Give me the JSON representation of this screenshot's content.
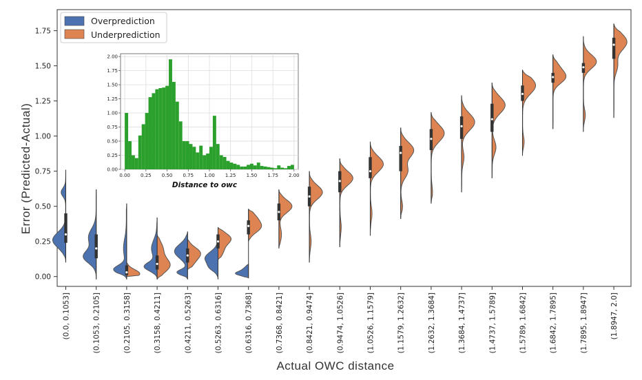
{
  "chart_data": [
    {
      "type": "violin",
      "title": "",
      "xlabel": "Actual OWC distance",
      "ylabel": "Error (Predicted-Actual)",
      "ylim": [
        -0.07,
        1.9
      ],
      "yticks": [
        0.0,
        0.25,
        0.5,
        0.75,
        1.0,
        1.25,
        1.5,
        1.75
      ],
      "ytick_labels": [
        "0.00",
        "0.25",
        "0.50",
        "0.75",
        "1.00",
        "1.25",
        "1.50",
        "1.75"
      ],
      "legend_position": "top-left",
      "categories": [
        "(0.0, 0.1053]",
        "(0.1053, 0.2105]",
        "(0.2105, 0.3158]",
        "(0.3158, 0.4211]",
        "(0.4211, 0.5263]",
        "(0.5263, 0.6316]",
        "(0.6316, 0.7368]",
        "(0.7368, 0.8421]",
        "(0.8421, 0.9474]",
        "(0.9474, 1.0526]",
        "(1.0526, 1.1579]",
        "(1.1579, 1.2632]",
        "(1.2632, 1.3684]",
        "(1.3684, 1.4737]",
        "(1.4737, 1.5789]",
        "(1.5789, 1.6842]",
        "(1.6842, 1.7895]",
        "(1.7895, 1.8947]",
        "(1.8947, 2.0]"
      ],
      "series": [
        {
          "name": "Overprediction",
          "color": "#4C72B0",
          "violins": [
            {
              "min": 0.1,
              "max": 0.76,
              "modes": [
                [
                  0.26,
                  0.055,
                  1.0
                ],
                [
                  0.6,
                  0.03,
                  0.35
                ]
              ],
              "median": 0.3,
              "q1": 0.24,
              "q3": 0.45
            },
            {
              "min": -0.02,
              "max": 0.62,
              "modes": [
                [
                  0.14,
                  0.045,
                  0.9
                ],
                [
                  0.28,
                  0.06,
                  0.55
                ]
              ],
              "median": 0.2,
              "q1": 0.13,
              "q3": 0.3
            },
            {
              "min": -0.02,
              "max": 0.52,
              "modes": [
                [
                  0.05,
                  0.03,
                  0.35
                ],
                [
                  0.2,
                  0.07,
                  0.08
                ]
              ],
              "median": 0.05,
              "q1": 0.02,
              "q3": 0.12
            },
            {
              "min": -0.02,
              "max": 0.42,
              "modes": [
                [
                  0.07,
                  0.03,
                  0.5
                ],
                [
                  0.2,
                  0.06,
                  0.22
                ]
              ],
              "median": 0.08,
              "q1": 0.04,
              "q3": 0.15
            },
            {
              "min": -0.02,
              "max": 0.32,
              "modes": [
                [
                  0.03,
                  0.02,
                  0.4
                ],
                [
                  0.18,
                  0.05,
                  0.5
                ]
              ],
              "median": 0.15,
              "q1": 0.05,
              "q3": 0.2
            },
            {
              "min": -0.02,
              "max": 0.32,
              "modes": [
                [
                  0.06,
                  0.025,
                  0.3
                ],
                [
                  0.13,
                  0.045,
                  0.8
                ]
              ],
              "median": 0.12,
              "q1": 0.06,
              "q3": 0.2
            },
            {
              "min": -0.01,
              "max": 0.09,
              "modes": [
                [
                  0.02,
                  0.015,
                  0.7
                ],
                [
                  0.05,
                  0.02,
                  0.3
                ]
              ],
              "median": 0.02,
              "q1": 0.01,
              "q3": 0.05
            }
          ]
        },
        {
          "name": "Underprediction",
          "color": "#DD8452",
          "violins": [
            {
              "min": 0.6,
              "max": 0.6,
              "modes": [],
              "median": 0.6,
              "q1": 0.6,
              "q3": 0.6
            },
            {
              "min": 0.3,
              "max": 0.3,
              "modes": [],
              "median": 0.3,
              "q1": 0.3,
              "q3": 0.3
            },
            {
              "min": 0.0,
              "max": 0.1,
              "modes": [
                [
                  0.02,
                  0.03,
                  0.65
                ]
              ],
              "median": 0.03,
              "q1": 0.01,
              "q3": 0.08
            },
            {
              "min": -0.02,
              "max": 0.3,
              "modes": [
                [
                  0.08,
                  0.05,
                  0.7
                ],
                [
                  0.2,
                  0.05,
                  0.3
                ]
              ],
              "median": 0.09,
              "q1": 0.05,
              "q3": 0.15
            },
            {
              "min": 0.05,
              "max": 0.27,
              "modes": [
                [
                  0.17,
                  0.04,
                  0.7
                ],
                [
                  0.1,
                  0.04,
                  0.3
                ]
              ],
              "median": 0.15,
              "q1": 0.1,
              "q3": 0.2
            },
            {
              "min": 0.12,
              "max": 0.35,
              "modes": [
                [
                  0.27,
                  0.04,
                  0.8
                ],
                [
                  0.18,
                  0.04,
                  0.3
                ]
              ],
              "median": 0.25,
              "q1": 0.2,
              "q3": 0.3
            },
            {
              "min": 0.25,
              "max": 0.48,
              "modes": [
                [
                  0.35,
                  0.04,
                  0.7
                ],
                [
                  0.42,
                  0.04,
                  0.4
                ]
              ],
              "median": 0.36,
              "q1": 0.3,
              "q3": 0.4
            },
            {
              "min": 0.2,
              "max": 0.62,
              "modes": [
                [
                  0.5,
                  0.045,
                  0.8
                ],
                [
                  0.3,
                  0.05,
                  0.15
                ]
              ],
              "median": 0.46,
              "q1": 0.4,
              "q3": 0.52
            },
            {
              "min": 0.1,
              "max": 0.75,
              "modes": [
                [
                  0.6,
                  0.05,
                  0.8
                ],
                [
                  0.25,
                  0.05,
                  0.1
                ]
              ],
              "median": 0.57,
              "q1": 0.5,
              "q3": 0.64
            },
            {
              "min": 0.21,
              "max": 0.84,
              "modes": [
                [
                  0.7,
                  0.05,
                  0.8
                ],
                [
                  0.35,
                  0.05,
                  0.08
                ]
              ],
              "median": 0.68,
              "q1": 0.6,
              "q3": 0.75
            },
            {
              "min": 0.29,
              "max": 0.96,
              "modes": [
                [
                  0.8,
                  0.055,
                  0.8
                ],
                [
                  0.45,
                  0.05,
                  0.1
                ]
              ],
              "median": 0.75,
              "q1": 0.7,
              "q3": 0.85
            },
            {
              "min": 0.41,
              "max": 1.06,
              "modes": [
                [
                  0.9,
                  0.055,
                  0.75
                ],
                [
                  0.75,
                  0.05,
                  0.4
                ],
                [
                  0.5,
                  0.04,
                  0.1
                ]
              ],
              "median": 0.88,
              "q1": 0.75,
              "q3": 0.93
            },
            {
              "min": 0.52,
              "max": 1.17,
              "modes": [
                [
                  1.02,
                  0.06,
                  0.85
                ],
                [
                  0.6,
                  0.05,
                  0.08
                ]
              ],
              "median": 0.98,
              "q1": 0.9,
              "q3": 1.05
            },
            {
              "min": 0.6,
              "max": 1.29,
              "modes": [
                [
                  1.1,
                  0.06,
                  0.85
                ],
                [
                  0.85,
                  0.05,
                  0.15
                ]
              ],
              "median": 1.07,
              "q1": 0.98,
              "q3": 1.14
            },
            {
              "min": 0.7,
              "max": 1.38,
              "modes": [
                [
                  1.22,
                  0.06,
                  0.85
                ],
                [
                  0.92,
                  0.05,
                  0.25
                ]
              ],
              "median": 1.12,
              "q1": 1.03,
              "q3": 1.23
            },
            {
              "min": 0.86,
              "max": 1.47,
              "modes": [
                [
                  1.36,
                  0.06,
                  0.85
                ],
                [
                  0.96,
                  0.04,
                  0.1
                ]
              ],
              "median": 1.3,
              "q1": 1.25,
              "q3": 1.36
            },
            {
              "min": 1.05,
              "max": 1.58,
              "modes": [
                [
                  1.42,
                  0.045,
                  0.9
                ],
                [
                  1.5,
                  0.04,
                  0.3
                ]
              ],
              "median": 1.42,
              "q1": 1.38,
              "q3": 1.45
            },
            {
              "min": 1.03,
              "max": 1.71,
              "modes": [
                [
                  1.53,
                  0.05,
                  0.85
                ],
                [
                  1.15,
                  0.04,
                  0.12
                ]
              ],
              "median": 1.49,
              "q1": 1.45,
              "q3": 1.52
            },
            {
              "min": 1.13,
              "max": 1.8,
              "modes": [
                [
                  1.67,
                  0.06,
                  0.9
                ],
                [
                  1.5,
                  0.05,
                  0.25
                ]
              ],
              "median": 1.65,
              "q1": 1.55,
              "q3": 1.7
            }
          ]
        }
      ]
    },
    {
      "type": "histogram",
      "xlabel": "Distance to owc",
      "ylabel": "",
      "xlim": [
        -0.05,
        2.05
      ],
      "ylim": [
        0,
        2.05
      ],
      "xticks": [
        0.0,
        0.25,
        0.5,
        0.75,
        1.0,
        1.25,
        1.5,
        1.75,
        2.0
      ],
      "xtick_labels": [
        "0.00",
        "0.25",
        "0.50",
        "0.75",
        "1.00",
        "1.25",
        "1.50",
        "1.75",
        "2.00"
      ],
      "yticks": [
        0.0,
        0.25,
        0.5,
        0.75,
        1.0,
        1.25,
        1.5,
        1.75,
        2.0
      ],
      "ytick_labels": [
        "0.00",
        "0.25",
        "0.50",
        "0.75",
        "1.00",
        "1.25",
        "1.50",
        "1.75",
        "2.00"
      ],
      "grid": true,
      "color": "#2CA02C",
      "bin_start": 0.0,
      "bin_width": 0.04,
      "values": [
        1.0,
        0.5,
        0.25,
        0.2,
        0.6,
        0.8,
        1.0,
        1.28,
        1.35,
        1.42,
        1.44,
        1.45,
        1.48,
        1.95,
        1.55,
        1.2,
        0.85,
        0.5,
        0.5,
        0.45,
        0.4,
        0.3,
        0.42,
        0.25,
        0.28,
        0.4,
        0.95,
        0.45,
        0.25,
        0.22,
        0.15,
        0.12,
        0.1,
        0.08,
        0.05,
        0.05,
        0.08,
        0.1,
        0.07,
        0.12,
        0.06,
        0.05,
        0.04,
        0.03,
        0.02,
        0.07,
        0.03,
        0.02,
        0.06,
        0.08
      ]
    }
  ]
}
